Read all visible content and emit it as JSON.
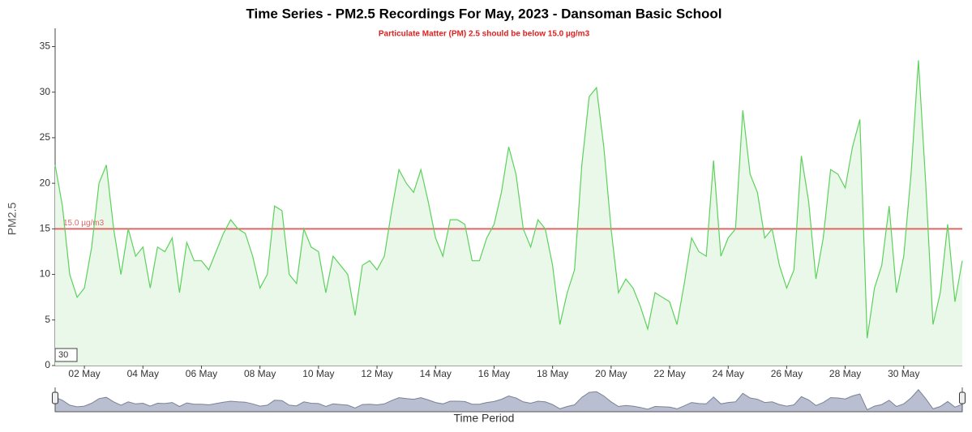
{
  "chart_data": {
    "type": "line",
    "title": "Time Series - PM2.5 Recordings For May, 2023 - Dansoman Basic School",
    "subtitle": "Particulate Matter (PM) 2.5 should be below 15.0 µg/m3",
    "y_label": "PM2.5",
    "x_label": "Time Period",
    "color": "#5cd15c",
    "fill": "#e9f8e9",
    "threshold": {
      "value": 15,
      "label": "15.0 µg/m3",
      "color": "#e06666"
    },
    "roll_period": "30",
    "x": [
      1,
      1.25,
      1.5,
      1.75,
      2,
      2.25,
      2.5,
      2.75,
      3,
      3.25,
      3.5,
      3.75,
      4,
      4.25,
      4.5,
      4.75,
      5,
      5.25,
      5.5,
      5.75,
      6,
      6.25,
      6.5,
      6.75,
      7,
      7.25,
      7.5,
      7.75,
      8,
      8.25,
      8.5,
      8.75,
      9,
      9.25,
      9.5,
      9.75,
      10,
      10.25,
      10.5,
      10.75,
      11,
      11.25,
      11.5,
      11.75,
      12,
      12.25,
      12.5,
      12.75,
      13,
      13.25,
      13.5,
      13.75,
      14,
      14.25,
      14.5,
      14.75,
      15,
      15.25,
      15.5,
      15.75,
      16,
      16.25,
      16.5,
      16.75,
      17,
      17.25,
      17.5,
      17.75,
      18,
      18.25,
      18.5,
      18.75,
      19,
      19.25,
      19.5,
      19.75,
      20,
      20.25,
      20.5,
      20.75,
      21,
      21.25,
      21.5,
      21.75,
      22,
      22.25,
      22.5,
      22.75,
      23,
      23.25,
      23.5,
      23.75,
      24,
      24.25,
      24.5,
      24.75,
      25,
      25.25,
      25.5,
      25.75,
      26,
      26.25,
      26.5,
      26.75,
      27,
      27.25,
      27.5,
      27.75,
      28,
      28.25,
      28.5,
      28.75,
      29,
      29.25,
      29.5,
      29.75,
      30,
      30.25,
      30.5,
      30.75,
      31,
      31.25,
      31.5,
      31.75,
      32
    ],
    "values": [
      22,
      17.5,
      10,
      7.5,
      8.5,
      13,
      20,
      22,
      15,
      10,
      15,
      12,
      13,
      8.5,
      13,
      12.5,
      14,
      8,
      13.5,
      11.5,
      11.5,
      10.5,
      12.5,
      14.5,
      16,
      15,
      14.5,
      12,
      8.5,
      10,
      17.5,
      17,
      10,
      9,
      15,
      13,
      12.5,
      8,
      12,
      11,
      10,
      5.5,
      11,
      11.5,
      10.5,
      12,
      17,
      21.5,
      20,
      19,
      21.5,
      18,
      14,
      12,
      16,
      16,
      15.5,
      11.5,
      11.5,
      14,
      15.5,
      19,
      24,
      21,
      15,
      13,
      16,
      15,
      11,
      4.5,
      8,
      10.5,
      22,
      29.5,
      30.5,
      24,
      15,
      8,
      9.5,
      8.5,
      6.5,
      4,
      8,
      7.5,
      7,
      4.5,
      9,
      14,
      12.5,
      12,
      22.5,
      12,
      14,
      15,
      28,
      21,
      19,
      14,
      15,
      11,
      8.5,
      10.5,
      23,
      18,
      9.5,
      14,
      21.5,
      21,
      19.5,
      24,
      27,
      3,
      8.5,
      11,
      17.5,
      8,
      12,
      21,
      33.5,
      20,
      4.5,
      8,
      15.5,
      7,
      11.5
    ],
    "xlim": [
      1,
      32
    ],
    "xticks": [
      {
        "value": 2,
        "label": "02 May"
      },
      {
        "value": 4,
        "label": "04 May"
      },
      {
        "value": 6,
        "label": "06 May"
      },
      {
        "value": 8,
        "label": "08 May"
      },
      {
        "value": 10,
        "label": "10 May"
      },
      {
        "value": 12,
        "label": "12 May"
      },
      {
        "value": 14,
        "label": "14 May"
      },
      {
        "value": 16,
        "label": "16 May"
      },
      {
        "value": 18,
        "label": "18 May"
      },
      {
        "value": 20,
        "label": "20 May"
      },
      {
        "value": 22,
        "label": "22 May"
      },
      {
        "value": 24,
        "label": "24 May"
      },
      {
        "value": 26,
        "label": "26 May"
      },
      {
        "value": 28,
        "label": "28 May"
      },
      {
        "value": 30,
        "label": "30 May"
      }
    ],
    "ylim": [
      0,
      37
    ],
    "yticks": [
      0,
      5,
      10,
      15,
      20,
      25,
      30,
      35
    ]
  }
}
